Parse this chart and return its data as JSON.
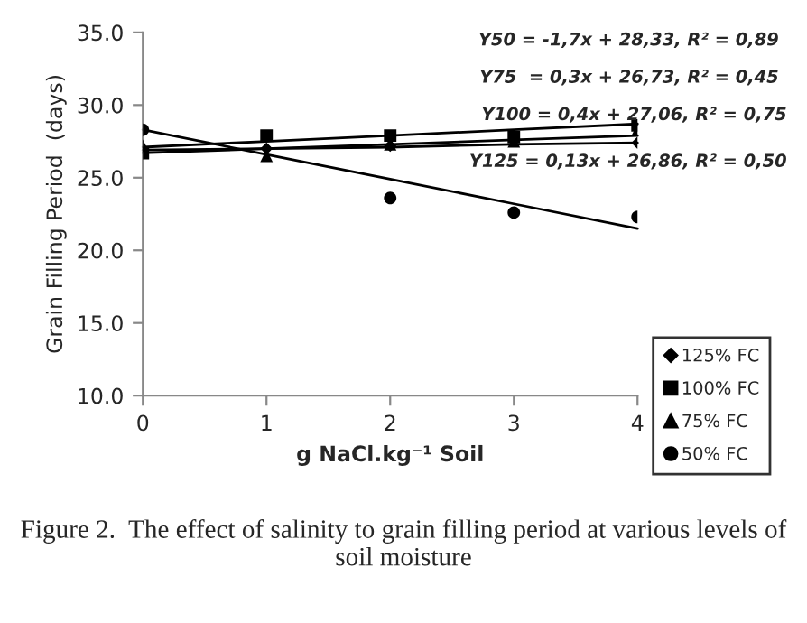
{
  "chart_data": {
    "type": "scatter",
    "xlabel": "g NaCl.kg⁻¹ Soil",
    "ylabel": "Grain Filling Period  (days)",
    "x": [
      0,
      1,
      2,
      3,
      4
    ],
    "xlim": [
      0,
      4
    ],
    "xticks": [
      0,
      1,
      2,
      3,
      4
    ],
    "ylim": [
      10,
      35
    ],
    "yticks": [
      {
        "value": 10,
        "label": "10.0"
      },
      {
        "value": 15,
        "label": "15.0"
      },
      {
        "value": 20,
        "label": "20.0"
      },
      {
        "value": 25,
        "label": "25.0"
      },
      {
        "value": 30,
        "label": "30.0"
      },
      {
        "value": 35,
        "label": "35.0"
      }
    ],
    "grid": false,
    "legend": "bottom right",
    "series": [
      {
        "name": "125% FC",
        "color": "#000000",
        "marker": "diamond",
        "values": [
          null,
          27.0,
          27.2,
          null,
          27.4
        ]
      },
      {
        "name": "100% FC",
        "color": "#000000",
        "marker": "square",
        "values": [
          26.7,
          27.9,
          27.9,
          27.8,
          28.6
        ]
      },
      {
        "name": "75% FC",
        "color": "#000000",
        "marker": "triangle",
        "values": [
          27.2,
          26.5,
          27.3,
          27.5,
          28.3
        ]
      },
      {
        "name": "50% FC",
        "color": "#000000",
        "marker": "circle",
        "values": [
          28.3,
          null,
          23.6,
          22.6,
          22.3
        ]
      },
      {
        "type": "line",
        "color": "#000000",
        "values": [
          28.3,
          26.6,
          24.9,
          23.2,
          21.5
        ]
      },
      {
        "type": "line",
        "color": "#000000",
        "values": [
          26.7,
          27.0,
          27.3,
          27.6,
          27.9
        ]
      },
      {
        "type": "line",
        "color": "#000000",
        "values": [
          27.1,
          27.5,
          27.9,
          28.3,
          28.7
        ]
      },
      {
        "type": "line",
        "color": "#000000",
        "values": [
          26.9,
          27.0,
          27.1,
          27.3,
          27.4
        ]
      }
    ],
    "annotations": [
      "Y50 = -1,7x + 28,33, R² = 0,89",
      "Y75  = 0,3x + 26,73, R² = 0,45",
      "Y100 = 0,4x + 27,06, R² = 0,75",
      "Y125 = 0,13x + 26,86, R² = 0,50",
      "Figure 2.  The effect of salinity to grain filling period at various levels of soil moisture"
    ]
  }
}
